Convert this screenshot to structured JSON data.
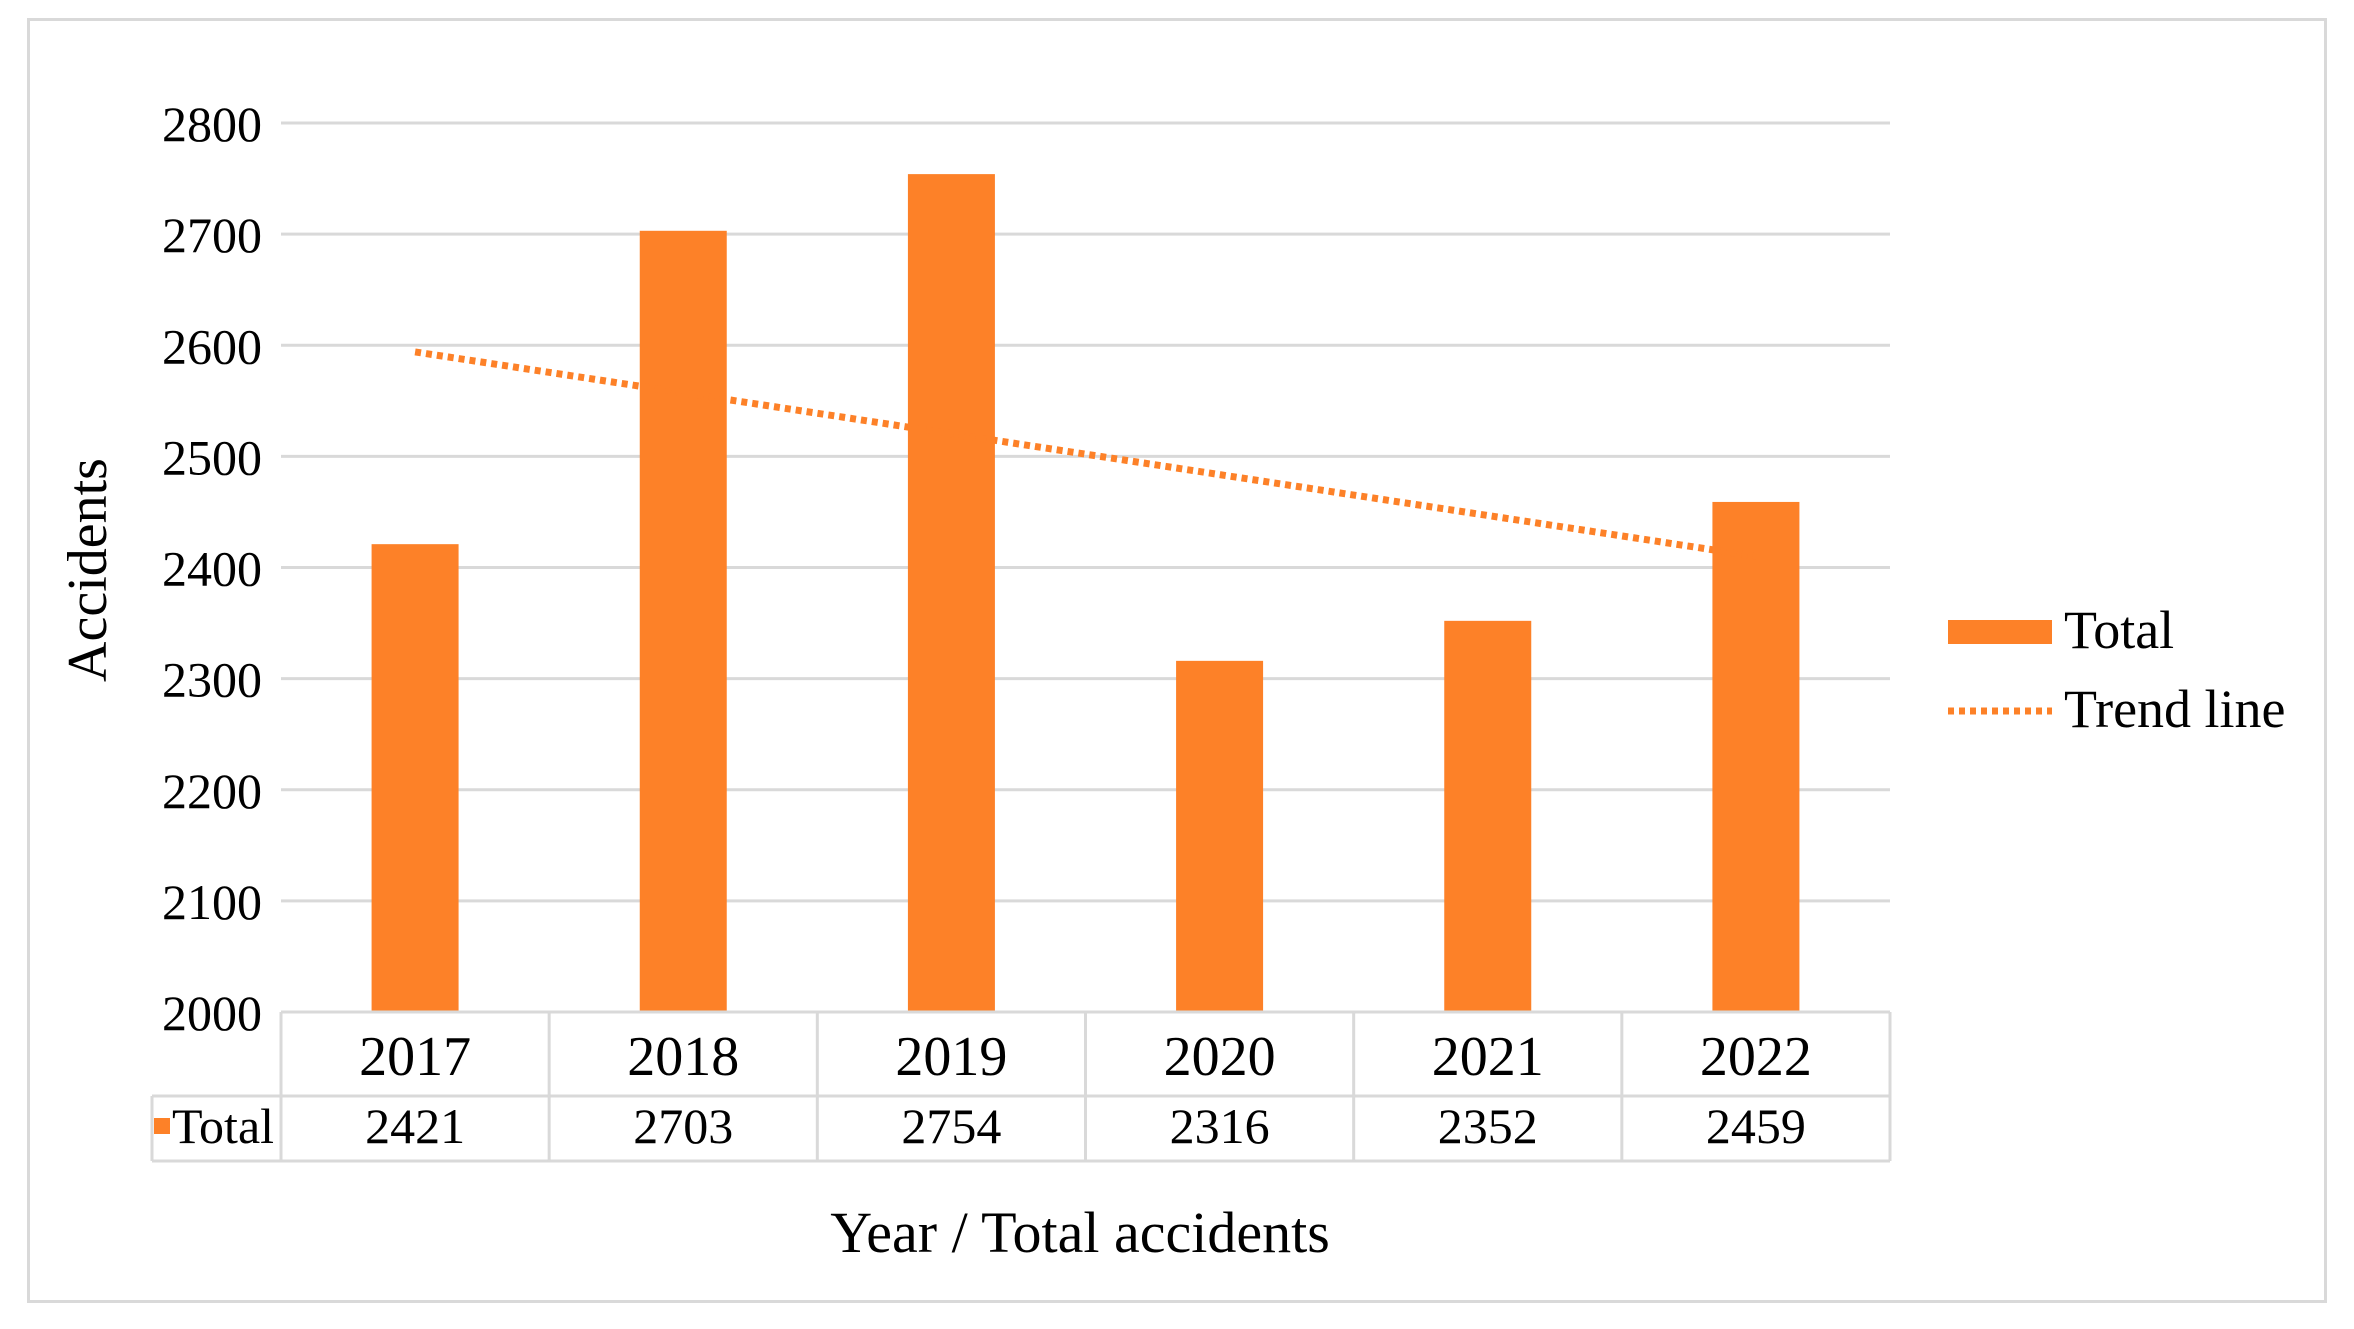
{
  "chart_data": {
    "type": "bar",
    "title": "",
    "xlabel": "Year / Total accidents",
    "ylabel": "Accidents",
    "categories": [
      "2017",
      "2018",
      "2019",
      "2020",
      "2021",
      "2022"
    ],
    "series": [
      {
        "name": "Total",
        "values": [
          2421,
          2703,
          2754,
          2316,
          2352,
          2459
        ],
        "color": "#fd8128"
      }
    ],
    "trend": {
      "name": "Trend line",
      "start": 2594,
      "end": 2410,
      "color": "#fd8128",
      "style": "dotted"
    },
    "yticks": [
      2000,
      2100,
      2200,
      2300,
      2400,
      2500,
      2600,
      2700,
      2800
    ],
    "ylim": [
      2000,
      2800
    ],
    "grid": true,
    "legend_position": "right",
    "data_table": {
      "row_label": "Total"
    }
  }
}
